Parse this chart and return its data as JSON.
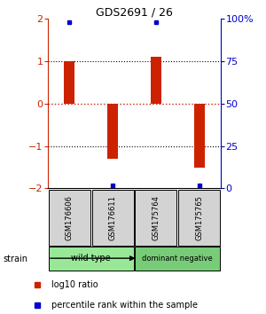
{
  "title": "GDS2691 / 26",
  "samples": [
    "GSM176606",
    "GSM176611",
    "GSM175764",
    "GSM175765"
  ],
  "log10_ratio": [
    1.0,
    -1.3,
    1.1,
    -1.5
  ],
  "percentile_rank": [
    98,
    2,
    98,
    2
  ],
  "groups": [
    {
      "label": "wild type",
      "samples": [
        0,
        1
      ],
      "color": "#98E898"
    },
    {
      "label": "dominant negative",
      "samples": [
        2,
        3
      ],
      "color": "#78CC78"
    }
  ],
  "bar_color": "#CC2200",
  "dot_color": "#0000CC",
  "ylim": [
    -2,
    2
  ],
  "yticks_left": [
    -2,
    -1,
    0,
    1,
    2
  ],
  "yticks_right": [
    0,
    25,
    50,
    75,
    100
  ],
  "hlines_dotted": [
    1.0,
    -1.0
  ],
  "hline_red_dashed": 0,
  "left_axis_color": "#CC2200",
  "right_axis_color": "#0000CC",
  "bar_width": 0.25
}
